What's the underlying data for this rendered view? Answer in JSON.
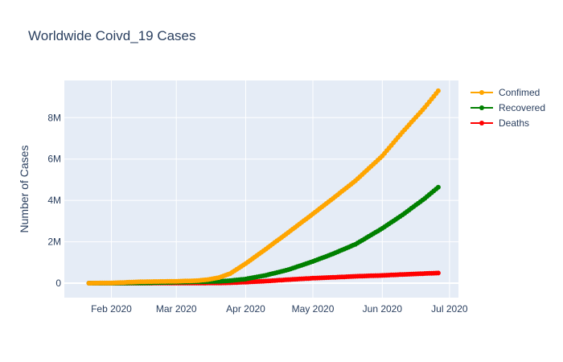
{
  "chart_data": {
    "type": "line",
    "title": "Worldwide Coivd_19 Cases",
    "xlabel": "",
    "ylabel": "Number of Cases",
    "x_range": [
      "2020-01-11",
      "2020-07-05"
    ],
    "ylim": [
      -700000,
      9800000
    ],
    "x_ticks": [
      {
        "date": "2020-02-01",
        "label": "Feb 2020"
      },
      {
        "date": "2020-03-01",
        "label": "Mar 2020"
      },
      {
        "date": "2020-04-01",
        "label": "Apr 2020"
      },
      {
        "date": "2020-05-01",
        "label": "May 2020"
      },
      {
        "date": "2020-06-01",
        "label": "Jun 2020"
      },
      {
        "date": "2020-07-01",
        "label": "Jul 2020"
      }
    ],
    "y_ticks": [
      {
        "value": 0,
        "label": "0"
      },
      {
        "value": 2000000,
        "label": "2M"
      },
      {
        "value": 4000000,
        "label": "4M"
      },
      {
        "value": 6000000,
        "label": "6M"
      },
      {
        "value": 8000000,
        "label": "8M"
      }
    ],
    "grid": true,
    "legend_position": "top-right",
    "x": [
      "2020-01-22",
      "2020-02-01",
      "2020-02-15",
      "2020-03-01",
      "2020-03-10",
      "2020-03-15",
      "2020-03-20",
      "2020-03-25",
      "2020-04-01",
      "2020-04-10",
      "2020-04-20",
      "2020-05-01",
      "2020-05-10",
      "2020-05-20",
      "2020-06-01",
      "2020-06-10",
      "2020-06-20",
      "2020-06-26"
    ],
    "series": [
      {
        "name": "Confimed",
        "color": "#ffa500",
        "values": [
          0,
          12000,
          70000,
          90000,
          120000,
          170000,
          270000,
          460000,
          950000,
          1650000,
          2450000,
          3350000,
          4100000,
          4950000,
          6150000,
          7300000,
          8500000,
          9300000
        ]
      },
      {
        "name": "Recovered",
        "color": "#008000",
        "values": [
          0,
          300,
          10000,
          45000,
          65000,
          75000,
          88000,
          120000,
          200000,
          380000,
          650000,
          1050000,
          1420000,
          1880000,
          2650000,
          3300000,
          4100000,
          4640000
        ]
      },
      {
        "name": "Deaths",
        "color": "#ff0000",
        "values": [
          0,
          260,
          1500,
          3000,
          4000,
          6000,
          11000,
          20000,
          50000,
          100000,
          170000,
          240000,
          280000,
          330000,
          375000,
          420000,
          465000,
          490000
        ]
      }
    ]
  }
}
